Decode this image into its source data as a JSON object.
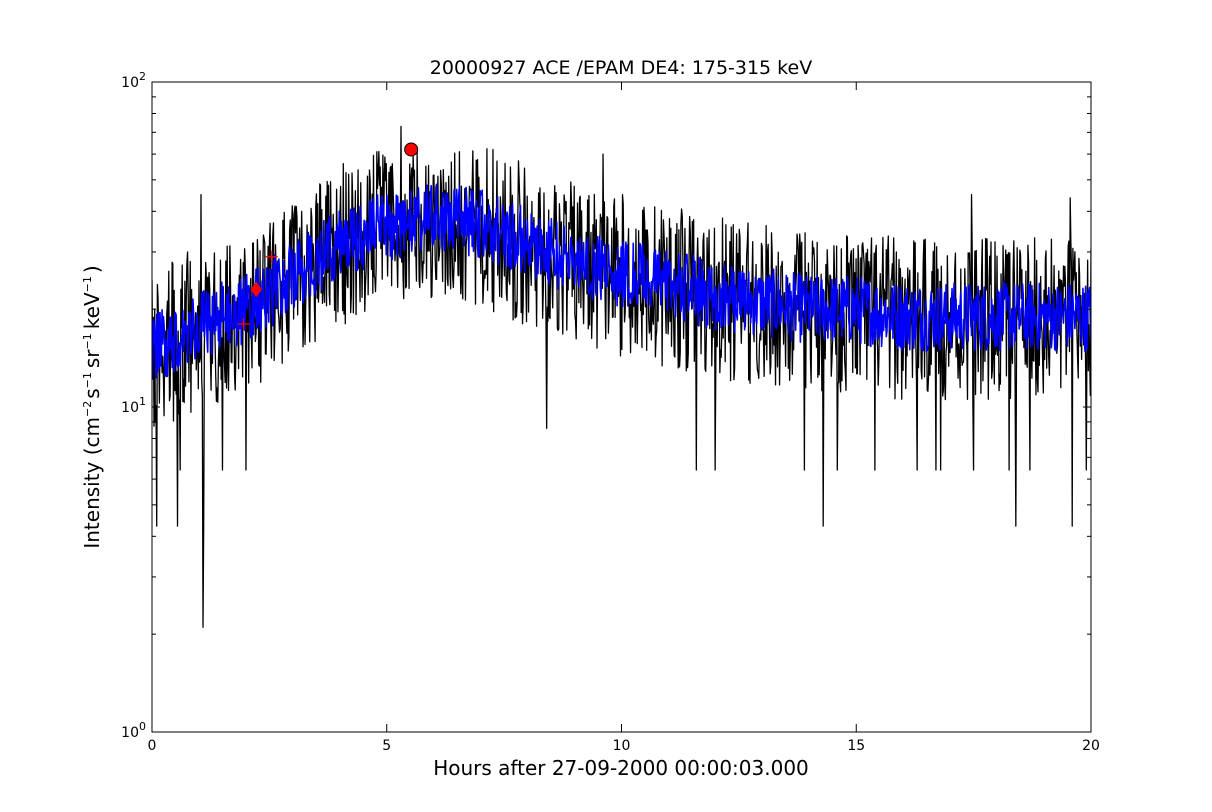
{
  "chart_data": {
    "type": "line",
    "title": "20000927 ACE /EPAM DE4: 175-315 keV",
    "xlabel": "Hours after 27-09-2000 00:00:03.000",
    "ylabel": {
      "prefix": "Intensity (cm",
      "exp1": "−2",
      "part2": "s",
      "exp2": "−1",
      "part3": "sr",
      "exp3": "−1",
      "part4": "keV",
      "exp4": "−1",
      "suffix": ")"
    },
    "xlim": [
      0,
      20
    ],
    "ylim": [
      1,
      100
    ],
    "yscale": "log",
    "grid": false,
    "legend": "none",
    "x_ticks": [
      {
        "value": 0,
        "label": "0"
      },
      {
        "value": 5,
        "label": "5"
      },
      {
        "value": 10,
        "label": "10"
      },
      {
        "value": 15,
        "label": "15"
      },
      {
        "value": 20,
        "label": "20"
      }
    ],
    "y_ticks": [
      {
        "value": 1,
        "base": "10",
        "exp": "0"
      },
      {
        "value": 10,
        "base": "10",
        "exp": "1"
      },
      {
        "value": 100,
        "base": "10",
        "exp": "2"
      }
    ],
    "series": [
      {
        "color": "#000000",
        "style": "noisy raw intensity",
        "trend": [
          [
            0,
            15
          ],
          [
            1,
            18
          ],
          [
            2,
            20
          ],
          [
            3,
            25
          ],
          [
            4,
            32
          ],
          [
            5,
            36
          ],
          [
            6,
            38
          ],
          [
            7,
            37
          ],
          [
            8,
            32
          ],
          [
            9,
            28
          ],
          [
            10,
            26
          ],
          [
            11,
            24
          ],
          [
            12,
            22
          ],
          [
            13,
            21
          ],
          [
            14,
            20
          ],
          [
            15,
            20
          ],
          [
            16,
            19
          ],
          [
            17,
            19
          ],
          [
            18,
            19
          ],
          [
            19,
            19
          ],
          [
            20,
            19
          ]
        ],
        "noise_low_factor": 0.55,
        "noise_high_factor": 1.75,
        "spikes": [
          [
            0.1,
            4.3
          ],
          [
            1.08,
            2.1
          ],
          [
            1.1,
            4.3
          ],
          [
            0.55,
            4.3
          ],
          [
            0.6,
            6.4
          ],
          [
            1.5,
            6.4
          ],
          [
            2.0,
            6.4
          ],
          [
            11.6,
            6.4
          ],
          [
            12.0,
            6.4
          ],
          [
            13.9,
            6.4
          ],
          [
            14.3,
            4.3
          ],
          [
            14.6,
            6.4
          ],
          [
            15.4,
            6.4
          ],
          [
            16.3,
            6.4
          ],
          [
            16.7,
            6.4
          ],
          [
            16.8,
            6.4
          ],
          [
            17.5,
            6.4
          ],
          [
            18.25,
            6.4
          ],
          [
            18.4,
            4.3
          ],
          [
            18.7,
            6.4
          ],
          [
            19.6,
            4.3
          ],
          [
            19.9,
            6.4
          ],
          [
            8.4,
            8.6
          ],
          [
            1.05,
            45
          ],
          [
            5.3,
            73
          ],
          [
            6.55,
            61
          ],
          [
            9.6,
            60
          ],
          [
            17.45,
            45
          ],
          [
            19.55,
            44
          ]
        ]
      },
      {
        "color": "#0000ff",
        "style": "smoothed intensity",
        "trend": [
          [
            0,
            15
          ],
          [
            1,
            18
          ],
          [
            2,
            20
          ],
          [
            3,
            25
          ],
          [
            4,
            32
          ],
          [
            5,
            36
          ],
          [
            6,
            38
          ],
          [
            7,
            37
          ],
          [
            8,
            32
          ],
          [
            9,
            28
          ],
          [
            10,
            26
          ],
          [
            11,
            24
          ],
          [
            12,
            22
          ],
          [
            13,
            21
          ],
          [
            14,
            20
          ],
          [
            15,
            20
          ],
          [
            16,
            19
          ],
          [
            17,
            19
          ],
          [
            18,
            19
          ],
          [
            19,
            19
          ],
          [
            20,
            19
          ]
        ],
        "noise_low_factor": 0.78,
        "noise_high_factor": 1.28,
        "spikes": []
      }
    ],
    "markers": [
      {
        "shape": "circle",
        "x": 5.52,
        "y": 62,
        "color": "#ff0000"
      },
      {
        "shape": "diamond",
        "x": 2.22,
        "y": 23,
        "color": "#ff0000"
      },
      {
        "shape": "plus",
        "x": 1.95,
        "y": 18,
        "color": "#ff0000"
      },
      {
        "shape": "plus",
        "x": 2.55,
        "y": 29,
        "color": "#ff0000"
      }
    ]
  }
}
